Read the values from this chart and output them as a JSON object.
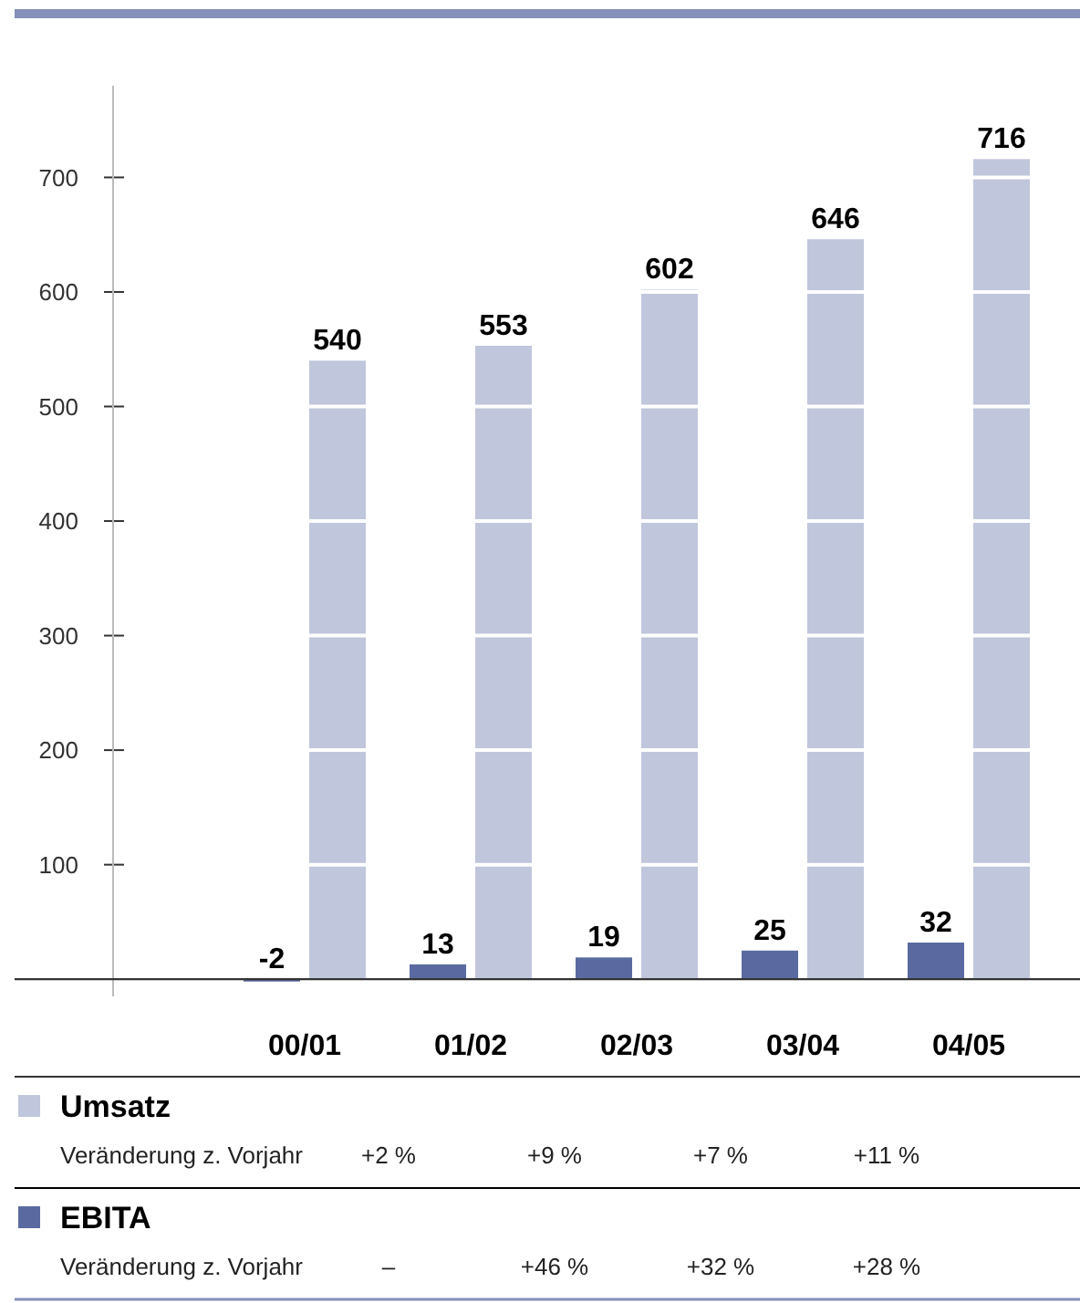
{
  "chart_data": {
    "type": "bar",
    "categories": [
      "00/01",
      "01/02",
      "02/03",
      "03/04",
      "04/05"
    ],
    "series": [
      {
        "name": "EBITA",
        "color": "#5a6aa0",
        "values": [
          -2,
          13,
          19,
          25,
          32
        ]
      },
      {
        "name": "Umsatz",
        "color": "#c0c6dc",
        "values": [
          540,
          553,
          602,
          646,
          716
        ]
      }
    ],
    "ylim": [
      -15,
      780
    ],
    "yticks": [
      100,
      200,
      300,
      400,
      500,
      600,
      700
    ],
    "grid": "y",
    "data_labels": true,
    "legend": "bottom",
    "annotations": [
      "Veränderung z. Vorjahr",
      "+2 %",
      "+9 %",
      "+7 %",
      "+11 %",
      "Veränderung z. Vorjahr",
      "–",
      "+46 %",
      "+32 %",
      "+28 %"
    ]
  }
}
